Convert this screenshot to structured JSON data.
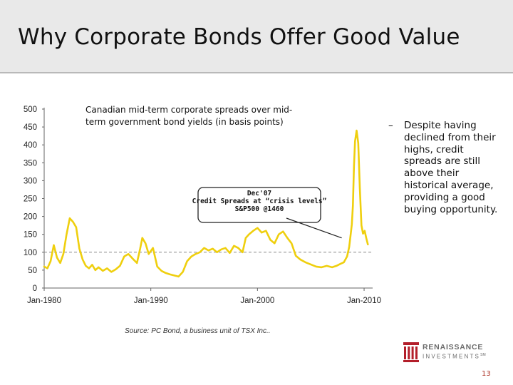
{
  "slide": {
    "title": "Why Corporate Bonds Offer Good Value",
    "bullet": "Despite having declined from their highs, credit spreads are still above their historical average, providing a good buying opportunity.",
    "bullet_marker": "–",
    "page_number": "13",
    "logo": {
      "line1": "RENAISSANCE",
      "line2": "INVESTMENTS",
      "trademark": "SM",
      "icon": "renaissance-logo-icon",
      "color": "#b31e2a"
    }
  },
  "chart_data": {
    "type": "line",
    "title": "Canadian mid-term corporate spreads over mid-term government bond yields (in basis points)",
    "title_lines": [
      "Canadian mid-term corporate spreads over mid-",
      "term government bond yields (in basis points)"
    ],
    "xlabel": "",
    "ylabel": "",
    "xlim": [
      1980,
      2010.8
    ],
    "ylim": [
      0,
      500
    ],
    "y_ticks": [
      0,
      50,
      100,
      150,
      200,
      250,
      300,
      350,
      400,
      450,
      500
    ],
    "x_ticks": [
      {
        "value": 1980,
        "label": "Jan-1980"
      },
      {
        "value": 1990,
        "label": "Jan-1990"
      },
      {
        "value": 2000,
        "label": "Jan-2000"
      },
      {
        "value": 2010,
        "label": "Jan-2010"
      }
    ],
    "grid": false,
    "reference_line": {
      "value": 100,
      "style": "dashed",
      "color": "#888888"
    },
    "series": [
      {
        "name": "Mid-term corporate spread",
        "color": "#efcf0e",
        "x": [
          1980.0,
          1980.3,
          1980.6,
          1980.9,
          1981.2,
          1981.5,
          1981.8,
          1982.1,
          1982.4,
          1982.7,
          1983.0,
          1983.3,
          1983.6,
          1983.9,
          1984.2,
          1984.5,
          1984.8,
          1985.1,
          1985.5,
          1985.9,
          1986.3,
          1986.7,
          1987.1,
          1987.5,
          1987.9,
          1988.3,
          1988.7,
          1989.0,
          1989.2,
          1989.5,
          1989.8,
          1990.2,
          1990.6,
          1991.0,
          1991.4,
          1991.8,
          1992.2,
          1992.6,
          1993.0,
          1993.4,
          1993.8,
          1994.2,
          1994.6,
          1995.0,
          1995.4,
          1995.8,
          1996.2,
          1996.6,
          1997.0,
          1997.4,
          1997.8,
          1998.2,
          1998.6,
          1998.9,
          1999.2,
          1999.6,
          2000.0,
          2000.4,
          2000.8,
          2001.2,
          2001.6,
          2002.0,
          2002.4,
          2002.8,
          2003.2,
          2003.6,
          2004.0,
          2004.5,
          2005.0,
          2005.5,
          2006.0,
          2006.5,
          2007.0,
          2007.4,
          2007.8,
          2008.1,
          2008.4,
          2008.6,
          2008.75,
          2008.85,
          2008.95,
          2009.05,
          2009.15,
          2009.3,
          2009.45,
          2009.6,
          2009.75,
          2009.9,
          2010.05,
          2010.2,
          2010.35
        ],
        "values": [
          60,
          55,
          75,
          120,
          85,
          70,
          95,
          150,
          195,
          185,
          170,
          110,
          80,
          62,
          55,
          65,
          50,
          58,
          48,
          55,
          45,
          52,
          62,
          88,
          95,
          82,
          70,
          110,
          140,
          125,
          95,
          112,
          60,
          48,
          42,
          38,
          35,
          32,
          45,
          75,
          88,
          95,
          100,
          112,
          105,
          110,
          100,
          108,
          112,
          98,
          118,
          112,
          100,
          140,
          150,
          160,
          168,
          155,
          160,
          135,
          125,
          150,
          158,
          140,
          125,
          90,
          80,
          72,
          66,
          60,
          58,
          62,
          58,
          62,
          68,
          72,
          88,
          115,
          152,
          178,
          230,
          340,
          410,
          440,
          405,
          280,
          175,
          152,
          160,
          140,
          122
        ]
      }
    ],
    "annotations": [
      {
        "lines": [
          "Dec'07",
          "Credit Spreads at “crisis levels”",
          "S&P500 @1460"
        ],
        "target_x": 2007.9,
        "target_y": 140
      }
    ],
    "source": "Source: PC Bond, a business unit of TSX Inc.."
  }
}
